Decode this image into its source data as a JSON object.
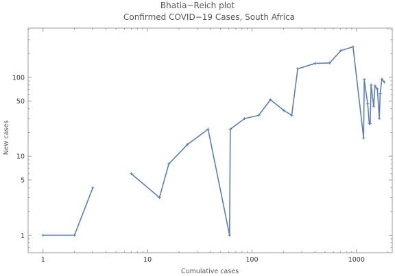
{
  "chart_data": {
    "type": "line",
    "title": "Bhatia−Reich plot",
    "subtitle": "Confirmed COVID−19 Cases, South Africa",
    "xlabel": "Cumulative cases",
    "ylabel": "New cases",
    "xscale": "log",
    "yscale": "log",
    "xlim": [
      0.72,
      2200
    ],
    "ylim": [
      0.6,
      420
    ],
    "xticks": [
      {
        "value": 1,
        "label": "1"
      },
      {
        "value": 10,
        "label": "10"
      },
      {
        "value": 100,
        "label": "100"
      },
      {
        "value": 1000,
        "label": "1000"
      }
    ],
    "yticks": [
      {
        "value": 1,
        "label": "1"
      },
      {
        "value": 5,
        "label": "5"
      },
      {
        "value": 10,
        "label": "10"
      },
      {
        "value": 50,
        "label": "50"
      },
      {
        "value": 100,
        "label": "100"
      }
    ],
    "series": [
      {
        "color": "#5b7fb2",
        "segments": [
          [
            [
              1,
              1
            ],
            [
              2,
              1
            ],
            [
              3,
              4
            ]
          ],
          [
            [
              7,
              6
            ],
            [
              13,
              3
            ],
            [
              16,
              8
            ],
            [
              24,
              14
            ],
            [
              38,
              22
            ],
            [
              61,
              1
            ],
            [
              62,
              22
            ],
            [
              85,
              30
            ],
            [
              116,
              33
            ],
            [
              150,
              52
            ],
            [
              202,
              38
            ],
            [
              240,
              33
            ],
            [
              274,
              128
            ],
            [
              402,
              150
            ],
            [
              554,
              152
            ],
            [
              709,
              218
            ],
            [
              927,
              243
            ],
            [
              1170,
              17
            ],
            [
              1187,
              93
            ],
            [
              1280,
              46
            ],
            [
              1326,
              26
            ],
            [
              1353,
              26
            ],
            [
              1380,
              80
            ],
            [
              1462,
              43
            ],
            [
              1505,
              78
            ],
            [
              1585,
              71
            ],
            [
              1655,
              30
            ],
            [
              1686,
              62
            ],
            [
              1749,
              95
            ],
            [
              1845,
              87
            ]
          ]
        ]
      }
    ]
  }
}
